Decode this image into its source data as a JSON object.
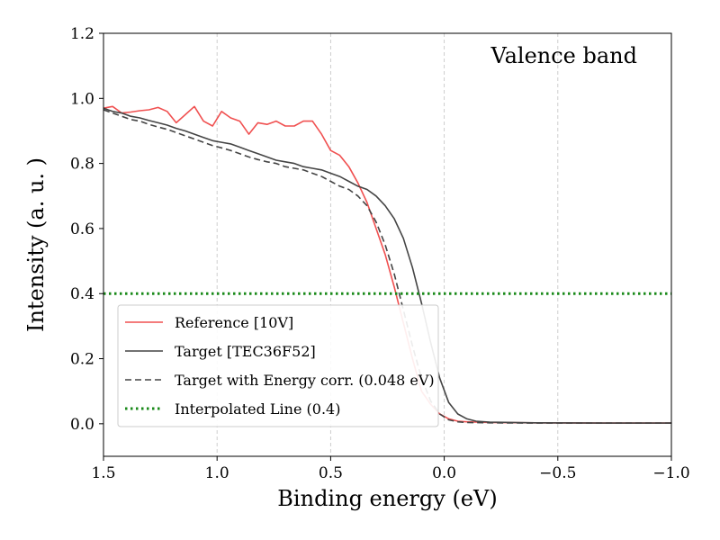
{
  "chart_data": {
    "type": "line",
    "annotation": "Valence band",
    "xlabel": "Binding energy (eV)",
    "ylabel": "Intensity (a. u. )",
    "xlim": [
      1.5,
      -1.0
    ],
    "ylim": [
      -0.1,
      1.2
    ],
    "xaxis_inverted": true,
    "x_ticks": [
      1.5,
      1.0,
      0.5,
      0.0,
      -0.5,
      -1.0
    ],
    "x_tick_labels": [
      "1.5",
      "1.0",
      "0.5",
      "0.0",
      "−0.5",
      "−1.0"
    ],
    "y_ticks": [
      0.0,
      0.2,
      0.4,
      0.6,
      0.8,
      1.0,
      1.2
    ],
    "y_tick_labels": [
      "0.0",
      "0.2",
      "0.4",
      "0.6",
      "0.8",
      "1.0",
      "1.2"
    ],
    "grid": "vertical dashed at x ticks",
    "legend_position": "lower-left",
    "series": [
      {
        "name": "Reference [10V]",
        "color": "#f05050",
        "style": "solid",
        "points": [
          [
            1.5,
            0.97
          ],
          [
            1.46,
            0.975
          ],
          [
            1.42,
            0.955
          ],
          [
            1.38,
            0.958
          ],
          [
            1.34,
            0.962
          ],
          [
            1.3,
            0.965
          ],
          [
            1.26,
            0.972
          ],
          [
            1.22,
            0.96
          ],
          [
            1.18,
            0.925
          ],
          [
            1.14,
            0.95
          ],
          [
            1.1,
            0.975
          ],
          [
            1.06,
            0.93
          ],
          [
            1.02,
            0.915
          ],
          [
            0.98,
            0.96
          ],
          [
            0.94,
            0.94
          ],
          [
            0.9,
            0.93
          ],
          [
            0.86,
            0.89
          ],
          [
            0.82,
            0.925
          ],
          [
            0.78,
            0.92
          ],
          [
            0.74,
            0.93
          ],
          [
            0.7,
            0.915
          ],
          [
            0.66,
            0.915
          ],
          [
            0.62,
            0.93
          ],
          [
            0.58,
            0.93
          ],
          [
            0.54,
            0.89
          ],
          [
            0.5,
            0.84
          ],
          [
            0.46,
            0.825
          ],
          [
            0.42,
            0.79
          ],
          [
            0.38,
            0.74
          ],
          [
            0.34,
            0.68
          ],
          [
            0.3,
            0.6
          ],
          [
            0.26,
            0.52
          ],
          [
            0.22,
            0.42
          ],
          [
            0.18,
            0.31
          ],
          [
            0.14,
            0.2
          ],
          [
            0.1,
            0.1
          ],
          [
            0.06,
            0.06
          ],
          [
            0.02,
            0.03
          ],
          [
            -0.02,
            0.015
          ],
          [
            -0.06,
            0.008
          ],
          [
            -0.1,
            0.006
          ],
          [
            -0.2,
            0.004
          ],
          [
            -0.4,
            0.003
          ],
          [
            -0.7,
            0.002
          ],
          [
            -1.0,
            0.002
          ]
        ]
      },
      {
        "name": "Target [TEC36F52]",
        "color": "#444444",
        "style": "solid",
        "points": [
          [
            1.5,
            0.97
          ],
          [
            1.46,
            0.96
          ],
          [
            1.42,
            0.955
          ],
          [
            1.38,
            0.945
          ],
          [
            1.34,
            0.94
          ],
          [
            1.3,
            0.932
          ],
          [
            1.26,
            0.925
          ],
          [
            1.22,
            0.918
          ],
          [
            1.18,
            0.908
          ],
          [
            1.14,
            0.9
          ],
          [
            1.1,
            0.89
          ],
          [
            1.06,
            0.88
          ],
          [
            1.02,
            0.87
          ],
          [
            0.98,
            0.865
          ],
          [
            0.94,
            0.86
          ],
          [
            0.9,
            0.85
          ],
          [
            0.86,
            0.84
          ],
          [
            0.82,
            0.83
          ],
          [
            0.78,
            0.82
          ],
          [
            0.74,
            0.81
          ],
          [
            0.7,
            0.805
          ],
          [
            0.66,
            0.8
          ],
          [
            0.62,
            0.79
          ],
          [
            0.58,
            0.785
          ],
          [
            0.54,
            0.78
          ],
          [
            0.5,
            0.77
          ],
          [
            0.46,
            0.76
          ],
          [
            0.42,
            0.745
          ],
          [
            0.38,
            0.73
          ],
          [
            0.34,
            0.72
          ],
          [
            0.3,
            0.7
          ],
          [
            0.26,
            0.67
          ],
          [
            0.22,
            0.63
          ],
          [
            0.18,
            0.57
          ],
          [
            0.14,
            0.48
          ],
          [
            0.1,
            0.37
          ],
          [
            0.06,
            0.25
          ],
          [
            0.02,
            0.14
          ],
          [
            -0.02,
            0.065
          ],
          [
            -0.06,
            0.03
          ],
          [
            -0.1,
            0.015
          ],
          [
            -0.14,
            0.008
          ],
          [
            -0.2,
            0.005
          ],
          [
            -0.4,
            0.003
          ],
          [
            -0.7,
            0.002
          ],
          [
            -1.0,
            0.002
          ]
        ]
      },
      {
        "name": "Target with Energy corr. (0.048 eV)",
        "color": "#444444",
        "style": "dashed",
        "points": [
          [
            1.5,
            0.965
          ],
          [
            1.46,
            0.955
          ],
          [
            1.42,
            0.945
          ],
          [
            1.38,
            0.935
          ],
          [
            1.34,
            0.93
          ],
          [
            1.3,
            0.92
          ],
          [
            1.26,
            0.912
          ],
          [
            1.22,
            0.905
          ],
          [
            1.18,
            0.895
          ],
          [
            1.14,
            0.885
          ],
          [
            1.1,
            0.875
          ],
          [
            1.06,
            0.865
          ],
          [
            1.02,
            0.855
          ],
          [
            0.98,
            0.848
          ],
          [
            0.94,
            0.84
          ],
          [
            0.9,
            0.83
          ],
          [
            0.86,
            0.82
          ],
          [
            0.82,
            0.812
          ],
          [
            0.78,
            0.805
          ],
          [
            0.74,
            0.8
          ],
          [
            0.7,
            0.79
          ],
          [
            0.66,
            0.785
          ],
          [
            0.62,
            0.78
          ],
          [
            0.58,
            0.77
          ],
          [
            0.54,
            0.76
          ],
          [
            0.5,
            0.745
          ],
          [
            0.46,
            0.73
          ],
          [
            0.42,
            0.72
          ],
          [
            0.38,
            0.7
          ],
          [
            0.34,
            0.67
          ],
          [
            0.3,
            0.62
          ],
          [
            0.26,
            0.55
          ],
          [
            0.22,
            0.46
          ],
          [
            0.18,
            0.35
          ],
          [
            0.14,
            0.24
          ],
          [
            0.1,
            0.14
          ],
          [
            0.06,
            0.07
          ],
          [
            0.02,
            0.03
          ],
          [
            -0.02,
            0.012
          ],
          [
            -0.06,
            0.006
          ],
          [
            -0.1,
            0.004
          ],
          [
            -0.2,
            0.003
          ],
          [
            -0.4,
            0.002
          ],
          [
            -0.7,
            0.002
          ],
          [
            -1.0,
            0.002
          ]
        ]
      },
      {
        "name": "Interpolated Line (0.4)",
        "color": "#1a8a1a",
        "style": "dotted",
        "points": [
          [
            1.5,
            0.4
          ],
          [
            -1.0,
            0.4
          ]
        ]
      }
    ]
  }
}
